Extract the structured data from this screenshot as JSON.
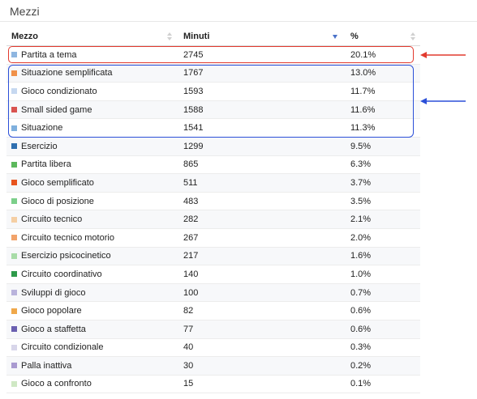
{
  "panel": {
    "title": "Mezzi"
  },
  "table": {
    "headers": {
      "mezzo": "Mezzo",
      "minuti": "Minuti",
      "percent": "%"
    },
    "rows": [
      {
        "name": "Partita a tema",
        "minutes": "2745",
        "percent": "20.1%",
        "color": "#8fb6e0"
      },
      {
        "name": "Situazione semplificata",
        "minutes": "1767",
        "percent": "13.0%",
        "color": "#f0914a"
      },
      {
        "name": "Gioco condizionato",
        "minutes": "1593",
        "percent": "11.7%",
        "color": "#c6d8f0"
      },
      {
        "name": "Small sided game",
        "minutes": "1588",
        "percent": "11.6%",
        "color": "#d9534f"
      },
      {
        "name": "Situazione",
        "minutes": "1541",
        "percent": "11.3%",
        "color": "#7fb0de"
      },
      {
        "name": "Esercizio",
        "minutes": "1299",
        "percent": "9.5%",
        "color": "#2f6fb0"
      },
      {
        "name": "Partita libera",
        "minutes": "865",
        "percent": "6.3%",
        "color": "#5cb85c"
      },
      {
        "name": "Gioco semplificato",
        "minutes": "511",
        "percent": "3.7%",
        "color": "#e8541e"
      },
      {
        "name": "Gioco di posizione",
        "minutes": "483",
        "percent": "3.5%",
        "color": "#7ccf8a"
      },
      {
        "name": "Circuito tecnico",
        "minutes": "282",
        "percent": "2.1%",
        "color": "#f5cfa4"
      },
      {
        "name": "Circuito tecnico motorio",
        "minutes": "267",
        "percent": "2.0%",
        "color": "#f2a36a"
      },
      {
        "name": "Esercizio psicocinetico",
        "minutes": "217",
        "percent": "1.6%",
        "color": "#a8dca8"
      },
      {
        "name": "Circuito coordinativo",
        "minutes": "140",
        "percent": "1.0%",
        "color": "#2e9a4a"
      },
      {
        "name": "Sviluppi di gioco",
        "minutes": "100",
        "percent": "0.7%",
        "color": "#b9b3dc"
      },
      {
        "name": "Gioco popolare",
        "minutes": "82",
        "percent": "0.6%",
        "color": "#f0a84a"
      },
      {
        "name": "Gioco a staffetta",
        "minutes": "77",
        "percent": "0.6%",
        "color": "#6a5fb0"
      },
      {
        "name": "Circuito condizionale",
        "minutes": "40",
        "percent": "0.3%",
        "color": "#d8d6ea"
      },
      {
        "name": "Palla inattiva",
        "minutes": "30",
        "percent": "0.2%",
        "color": "#a99ad0"
      },
      {
        "name": "Gioco a confronto",
        "minutes": "15",
        "percent": "0.1%",
        "color": "#cfe8c4"
      }
    ]
  },
  "annotations": {
    "red_color": "#e23a2e",
    "blue_color": "#2b4fd8"
  }
}
